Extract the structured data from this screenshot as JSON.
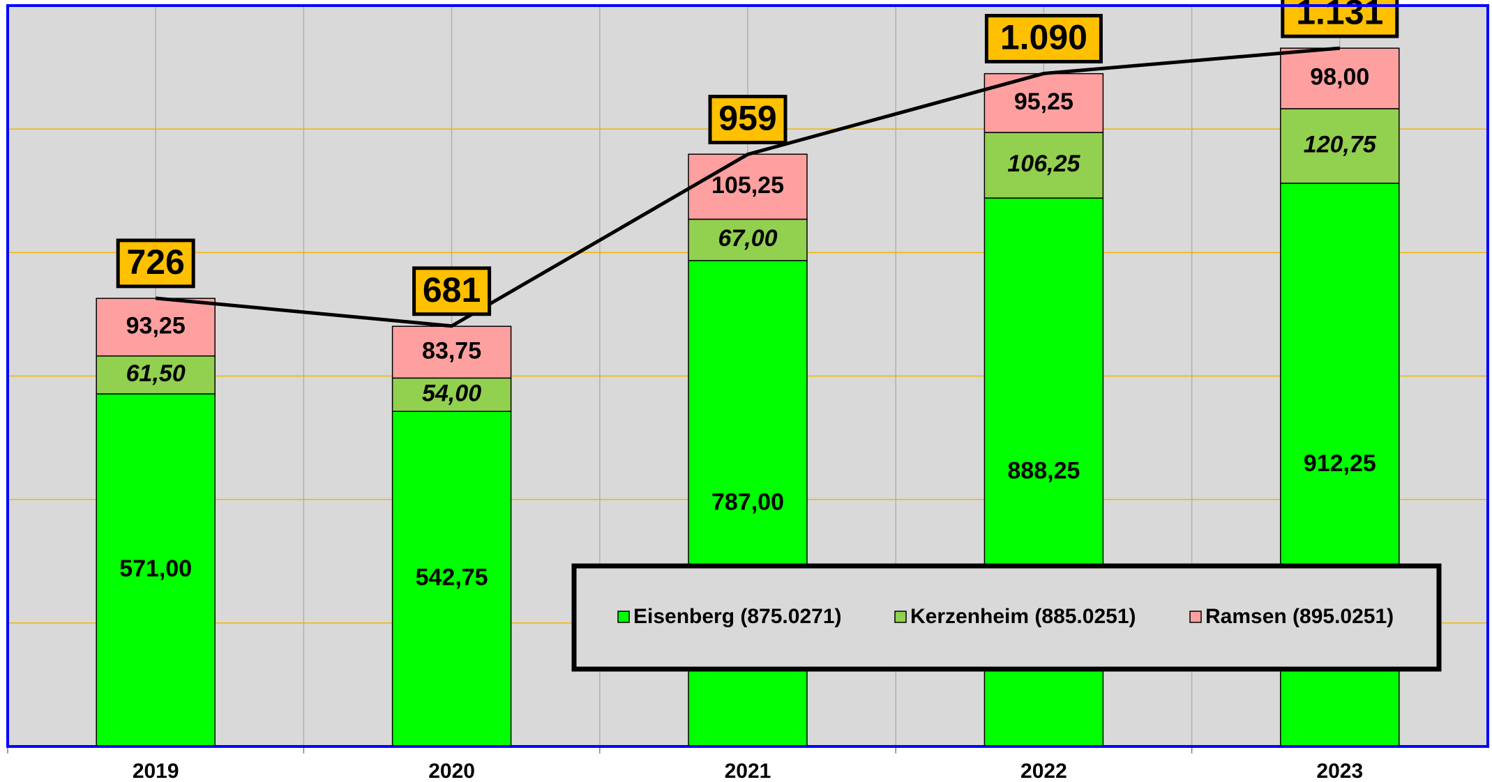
{
  "chart_data": {
    "type": "bar",
    "stacked": true,
    "categories": [
      "2019",
      "2020",
      "2021",
      "2022",
      "2023"
    ],
    "series": [
      {
        "name": "Eisenberg (875.0271)",
        "color": "#00ff00",
        "values": [
          571.0,
          542.75,
          787.0,
          888.25,
          912.25
        ],
        "value_labels": [
          "571,00",
          "542,75",
          "787,00",
          "888,25",
          "912,25"
        ]
      },
      {
        "name": "Kerzenheim (885.0251)",
        "color": "#92d050",
        "values": [
          61.5,
          54.0,
          67.0,
          106.25,
          120.75
        ],
        "value_labels": [
          "61,50",
          "54,00",
          "67,00",
          "106,25",
          "120,75"
        ]
      },
      {
        "name": "Ramsen (895.0251)",
        "color": "#ffa0a0",
        "values": [
          93.25,
          83.75,
          105.25,
          95.25,
          98.0
        ],
        "value_labels": [
          "93,25",
          "83,75",
          "105,25",
          "95,25",
          "98,00"
        ]
      }
    ],
    "totals": {
      "values": [
        726,
        681,
        959,
        1090,
        1131
      ],
      "value_labels": [
        "726",
        "681",
        "959",
        "1.090",
        "1.131"
      ],
      "color": "#000000",
      "label_color": "#ffc000"
    },
    "ylim": [
      0,
      1200
    ],
    "yticks": [
      0,
      200,
      400,
      600,
      800,
      1000,
      1200
    ],
    "grid": true
  }
}
